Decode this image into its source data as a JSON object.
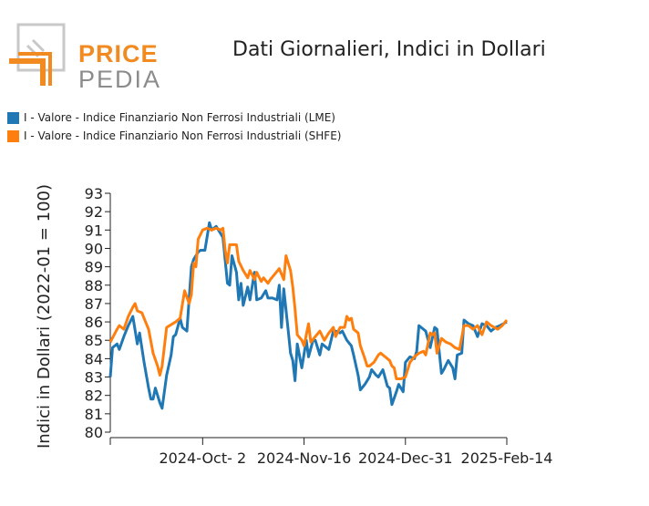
{
  "logo": {
    "line1": "PRICE",
    "line2": "PEDIA"
  },
  "colors": {
    "lme": "#1f77b4",
    "shfe": "#ff7f0e",
    "logo_orange": "#f18a21",
    "logo_gray": "#8c8c8c"
  },
  "chart_data": {
    "type": "line",
    "title": "Dati Giornalieri, Indici in Dollari",
    "ylabel": "Indici in Dollari (2022-01 = 100)",
    "xlabel": "",
    "ylim": [
      80,
      93
    ],
    "yticks": [
      80,
      81,
      82,
      83,
      84,
      85,
      86,
      87,
      88,
      89,
      90,
      91,
      92,
      93
    ],
    "xrange": [
      "2024-08-22",
      "2025-02-14"
    ],
    "xticks": [
      {
        "date": "2024-08-22",
        "label": ""
      },
      {
        "date": "2024-10-02",
        "label": "2024-Oct- 2"
      },
      {
        "date": "2024-11-16",
        "label": "2024-Nov-16"
      },
      {
        "date": "2024-12-31",
        "label": "2024-Dec-31"
      },
      {
        "date": "2025-02-14",
        "label": "2025-Feb-14"
      }
    ],
    "legend_position": "top-left",
    "grid": false,
    "series": [
      {
        "name": "I - Valore - Indice Finanziario Non Ferrosi Industriali (LME)",
        "color": "#1f77b4",
        "points": [
          [
            "2024-08-22",
            83.0
          ],
          [
            "2024-08-23",
            84.6
          ],
          [
            "2024-08-25",
            84.8
          ],
          [
            "2024-08-26",
            84.5
          ],
          [
            "2024-08-28",
            85.2
          ],
          [
            "2024-08-30",
            85.8
          ],
          [
            "2024-09-01",
            86.3
          ],
          [
            "2024-09-03",
            84.8
          ],
          [
            "2024-09-04",
            85.4
          ],
          [
            "2024-09-06",
            83.8
          ],
          [
            "2024-09-08",
            82.4
          ],
          [
            "2024-09-09",
            81.8
          ],
          [
            "2024-09-10",
            81.8
          ],
          [
            "2024-09-11",
            82.4
          ],
          [
            "2024-09-13",
            81.6
          ],
          [
            "2024-09-14",
            81.3
          ],
          [
            "2024-09-16",
            83.1
          ],
          [
            "2024-09-18",
            84.2
          ],
          [
            "2024-09-19",
            85.2
          ],
          [
            "2024-09-20",
            85.3
          ],
          [
            "2024-09-22",
            86.2
          ],
          [
            "2024-09-23",
            85.7
          ],
          [
            "2024-09-25",
            85.5
          ],
          [
            "2024-09-27",
            89.0
          ],
          [
            "2024-09-28",
            89.4
          ],
          [
            "2024-09-30",
            89.8
          ],
          [
            "2024-10-01",
            89.9
          ],
          [
            "2024-10-03",
            89.9
          ],
          [
            "2024-10-05",
            91.4
          ],
          [
            "2024-10-06",
            91.0
          ],
          [
            "2024-10-08",
            91.2
          ],
          [
            "2024-10-09",
            91.0
          ],
          [
            "2024-10-11",
            90.6
          ],
          [
            "2024-10-13",
            88.1
          ],
          [
            "2024-10-14",
            88.0
          ],
          [
            "2024-10-15",
            89.6
          ],
          [
            "2024-10-17",
            88.7
          ],
          [
            "2024-10-18",
            87.2
          ],
          [
            "2024-10-19",
            88.1
          ],
          [
            "2024-10-20",
            86.9
          ],
          [
            "2024-10-22",
            87.9
          ],
          [
            "2024-10-23",
            87.2
          ],
          [
            "2024-10-25",
            88.7
          ],
          [
            "2024-10-26",
            87.2
          ],
          [
            "2024-10-28",
            87.3
          ],
          [
            "2024-10-30",
            87.7
          ],
          [
            "2024-10-31",
            87.3
          ],
          [
            "2024-11-02",
            87.3
          ],
          [
            "2024-11-04",
            87.2
          ],
          [
            "2024-11-05",
            88.0
          ],
          [
            "2024-11-06",
            85.7
          ],
          [
            "2024-11-07",
            87.8
          ],
          [
            "2024-11-09",
            85.5
          ],
          [
            "2024-11-10",
            84.3
          ],
          [
            "2024-11-11",
            83.9
          ],
          [
            "2024-11-12",
            82.8
          ],
          [
            "2024-11-13",
            84.8
          ],
          [
            "2024-11-15",
            83.5
          ],
          [
            "2024-11-17",
            85.0
          ],
          [
            "2024-11-18",
            84.1
          ],
          [
            "2024-11-20",
            85.0
          ],
          [
            "2024-11-21",
            85.0
          ],
          [
            "2024-11-23",
            84.2
          ],
          [
            "2024-11-24",
            84.8
          ],
          [
            "2024-11-27",
            84.5
          ],
          [
            "2024-11-29",
            85.5
          ],
          [
            "2024-11-30",
            85.5
          ],
          [
            "2024-12-02",
            85.4
          ],
          [
            "2024-12-03",
            85.5
          ],
          [
            "2024-12-05",
            85.0
          ],
          [
            "2024-12-07",
            84.7
          ],
          [
            "2024-12-08",
            84.2
          ],
          [
            "2024-12-10",
            83.1
          ],
          [
            "2024-12-11",
            82.3
          ],
          [
            "2024-12-13",
            82.6
          ],
          [
            "2024-12-15",
            83.0
          ],
          [
            "2024-12-16",
            83.4
          ],
          [
            "2024-12-18",
            83.1
          ],
          [
            "2024-12-19",
            83.0
          ],
          [
            "2024-12-21",
            83.4
          ],
          [
            "2024-12-23",
            82.5
          ],
          [
            "2024-12-24",
            82.4
          ],
          [
            "2024-12-25",
            81.5
          ],
          [
            "2024-12-27",
            82.2
          ],
          [
            "2024-12-28",
            82.6
          ],
          [
            "2024-12-30",
            82.2
          ],
          [
            "2024-12-31",
            83.8
          ],
          [
            "2025-01-02",
            84.1
          ],
          [
            "2025-01-04",
            84.0
          ],
          [
            "2025-01-05",
            84.4
          ],
          [
            "2025-01-06",
            85.8
          ],
          [
            "2025-01-08",
            85.6
          ],
          [
            "2025-01-09",
            85.5
          ],
          [
            "2025-01-11",
            84.6
          ],
          [
            "2025-01-13",
            85.7
          ],
          [
            "2025-01-14",
            85.6
          ],
          [
            "2025-01-16",
            83.2
          ],
          [
            "2025-01-17",
            83.4
          ],
          [
            "2025-01-19",
            83.9
          ],
          [
            "2025-01-21",
            83.5
          ],
          [
            "2025-01-22",
            82.9
          ],
          [
            "2025-01-23",
            84.2
          ],
          [
            "2025-01-25",
            84.3
          ],
          [
            "2025-01-26",
            86.1
          ],
          [
            "2025-01-28",
            85.9
          ],
          [
            "2025-01-30",
            85.8
          ],
          [
            "2025-02-01",
            85.2
          ],
          [
            "2025-02-03",
            85.9
          ],
          [
            "2025-02-05",
            85.8
          ],
          [
            "2025-02-07",
            85.5
          ],
          [
            "2025-02-09",
            85.7
          ],
          [
            "2025-02-11",
            85.8
          ],
          [
            "2025-02-14",
            86.0
          ]
        ]
      },
      {
        "name": "I - Valore - Indice Finanziario Non Ferrosi Industriali (SHFE)",
        "color": "#ff7f0e",
        "points": [
          [
            "2024-08-22",
            84.9
          ],
          [
            "2024-08-25",
            85.6
          ],
          [
            "2024-08-26",
            85.8
          ],
          [
            "2024-08-28",
            85.6
          ],
          [
            "2024-08-30",
            86.3
          ],
          [
            "2024-09-01",
            86.8
          ],
          [
            "2024-09-02",
            87.0
          ],
          [
            "2024-09-03",
            86.6
          ],
          [
            "2024-09-05",
            86.5
          ],
          [
            "2024-09-06",
            86.2
          ],
          [
            "2024-09-08",
            85.6
          ],
          [
            "2024-09-10",
            84.3
          ],
          [
            "2024-09-12",
            83.6
          ],
          [
            "2024-09-13",
            83.1
          ],
          [
            "2024-09-14",
            83.6
          ],
          [
            "2024-09-16",
            85.7
          ],
          [
            "2024-09-20",
            86.0
          ],
          [
            "2024-09-22",
            86.2
          ],
          [
            "2024-09-24",
            87.7
          ],
          [
            "2024-09-26",
            87.0
          ],
          [
            "2024-09-27",
            87.5
          ],
          [
            "2024-09-28",
            89.2
          ],
          [
            "2024-09-29",
            89.0
          ],
          [
            "2024-09-30",
            90.5
          ],
          [
            "2024-10-02",
            91.0
          ],
          [
            "2024-10-04",
            91.1
          ],
          [
            "2024-10-06",
            91.0
          ],
          [
            "2024-10-08",
            91.1
          ],
          [
            "2024-10-10",
            91.0
          ],
          [
            "2024-10-11",
            91.1
          ],
          [
            "2024-10-12",
            89.9
          ],
          [
            "2024-10-13",
            89.2
          ],
          [
            "2024-10-14",
            90.2
          ],
          [
            "2024-10-17",
            90.2
          ],
          [
            "2024-10-18",
            89.3
          ],
          [
            "2024-10-20",
            88.8
          ],
          [
            "2024-10-22",
            88.4
          ],
          [
            "2024-10-23",
            88.8
          ],
          [
            "2024-10-25",
            88.3
          ],
          [
            "2024-10-26",
            88.7
          ],
          [
            "2024-10-28",
            88.2
          ],
          [
            "2024-10-29",
            88.4
          ],
          [
            "2024-10-31",
            88.1
          ],
          [
            "2024-11-01",
            88.3
          ],
          [
            "2024-11-03",
            88.6
          ],
          [
            "2024-11-05",
            88.9
          ],
          [
            "2024-11-07",
            88.3
          ],
          [
            "2024-11-08",
            89.6
          ],
          [
            "2024-11-10",
            88.8
          ],
          [
            "2024-11-11",
            87.9
          ],
          [
            "2024-11-12",
            86.7
          ],
          [
            "2024-11-13",
            85.3
          ],
          [
            "2024-11-15",
            85.0
          ],
          [
            "2024-11-16",
            84.7
          ],
          [
            "2024-11-18",
            85.9
          ],
          [
            "2024-11-19",
            84.9
          ],
          [
            "2024-11-21",
            85.2
          ],
          [
            "2024-11-23",
            85.5
          ],
          [
            "2024-11-25",
            85.0
          ],
          [
            "2024-11-27",
            85.4
          ],
          [
            "2024-11-29",
            85.7
          ],
          [
            "2024-11-30",
            85.2
          ],
          [
            "2024-12-02",
            85.7
          ],
          [
            "2024-12-04",
            85.7
          ],
          [
            "2024-12-05",
            86.3
          ],
          [
            "2024-12-06",
            86.1
          ],
          [
            "2024-12-07",
            86.2
          ],
          [
            "2024-12-08",
            85.6
          ],
          [
            "2024-12-10",
            85.4
          ],
          [
            "2024-12-11",
            84.7
          ],
          [
            "2024-12-13",
            84.0
          ],
          [
            "2024-12-14",
            83.6
          ],
          [
            "2024-12-15",
            83.6
          ],
          [
            "2024-12-17",
            83.8
          ],
          [
            "2024-12-19",
            84.2
          ],
          [
            "2024-12-20",
            84.3
          ],
          [
            "2024-12-22",
            84.1
          ],
          [
            "2024-12-24",
            83.9
          ],
          [
            "2024-12-25",
            83.6
          ],
          [
            "2024-12-26",
            83.5
          ],
          [
            "2024-12-27",
            82.9
          ],
          [
            "2024-12-29",
            82.9
          ],
          [
            "2024-12-31",
            83.0
          ],
          [
            "2025-01-02",
            83.8
          ],
          [
            "2025-01-04",
            84.1
          ],
          [
            "2025-01-06",
            84.3
          ],
          [
            "2025-01-08",
            84.4
          ],
          [
            "2025-01-09",
            84.2
          ],
          [
            "2025-01-11",
            85.4
          ],
          [
            "2025-01-12",
            85.3
          ],
          [
            "2025-01-13",
            85.4
          ],
          [
            "2025-01-14",
            84.3
          ],
          [
            "2025-01-16",
            85.1
          ],
          [
            "2025-01-18",
            84.9
          ],
          [
            "2025-01-20",
            84.8
          ],
          [
            "2025-01-22",
            84.6
          ],
          [
            "2025-01-24",
            84.5
          ],
          [
            "2025-01-26",
            85.8
          ],
          [
            "2025-01-28",
            85.8
          ],
          [
            "2025-01-30",
            85.6
          ],
          [
            "2025-02-01",
            85.8
          ],
          [
            "2025-02-03",
            85.3
          ],
          [
            "2025-02-05",
            86.0
          ],
          [
            "2025-02-07",
            85.8
          ],
          [
            "2025-02-10",
            85.6
          ],
          [
            "2025-02-12",
            85.8
          ],
          [
            "2025-02-14",
            86.1
          ]
        ]
      }
    ]
  }
}
